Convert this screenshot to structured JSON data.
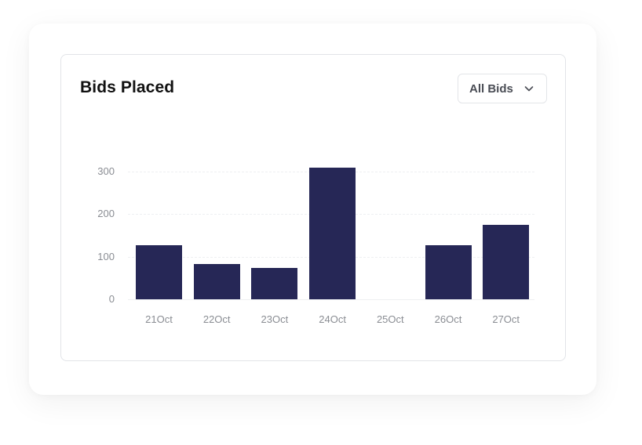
{
  "card": {
    "title": "Bids Placed",
    "filter": {
      "selected": "All Bids",
      "icon": "chevron-down-icon"
    }
  },
  "colors": {
    "bar": "#262756",
    "grid": "#eef0f2",
    "tick_text": "#8a8d93"
  },
  "axis": {
    "y_ticks": [
      "300",
      "200",
      "100",
      "0"
    ],
    "x_ticks": [
      "21Oct",
      "22Oct",
      "23Oct",
      "24Oct",
      "25Oct",
      "26Oct",
      "27Oct"
    ]
  },
  "chart_data": {
    "type": "bar",
    "title": "Bids Placed",
    "categories": [
      "21Oct",
      "22Oct",
      "23Oct",
      "24Oct",
      "25Oct",
      "26Oct",
      "27Oct"
    ],
    "values": [
      127,
      83,
      74,
      309,
      0,
      127,
      175
    ],
    "xlabel": "",
    "ylabel": "",
    "ylim": [
      0,
      300
    ],
    "y_ticks": [
      0,
      100,
      200,
      300
    ],
    "grid": true,
    "legend": null,
    "filter": "All Bids"
  }
}
